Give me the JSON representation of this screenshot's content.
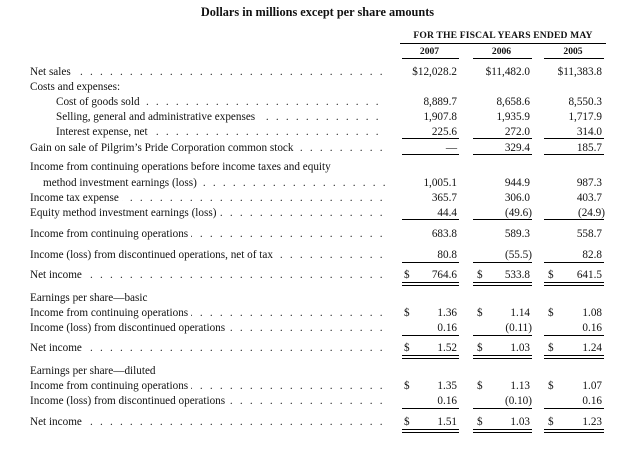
{
  "title": "Dollars in millions except per share amounts",
  "fiscal_header": "FOR THE FISCAL YEARS ENDED MAY",
  "years": [
    "2007",
    "2006",
    "2005"
  ],
  "dots": ". . . . . . . . . . . . . . . . . . . . . . . . . . . . . . . . . . . . . . . . . . . . . . . . . . . . . . . . . . . . . . . . . . . . . . . . . . . . . . . . . . . . . . . . . . . . . . .",
  "rows": [
    {
      "label": "Net sales",
      "c1": "$12,028.2",
      "c2": "$11,482.0",
      "c3": "$11,383.8"
    },
    {
      "label": "Costs and expenses:"
    },
    {
      "label": "Cost of goods sold",
      "c1": "8,889.7",
      "c2": "8,658.6",
      "c3": "8,550.3"
    },
    {
      "label": "Selling, general and administrative expenses",
      "c1": "1,907.8",
      "c2": "1,935.9",
      "c3": "1,717.9"
    },
    {
      "label": "Interest expense, net",
      "c1": "225.6",
      "c2": "272.0",
      "c3": "314.0"
    },
    {
      "label": "Gain on sale of Pilgrim’s Pride Corporation common stock",
      "c1": "—",
      "c2": "329.4",
      "c3": "185.7"
    },
    {
      "label": "Income from continuing operations before income taxes and equity"
    },
    {
      "label": "method investment earnings (loss)",
      "c1": "1,005.1",
      "c2": "944.9",
      "c3": "987.3"
    },
    {
      "label": "Income tax expense",
      "c1": "365.7",
      "c2": "306.0",
      "c3": "403.7"
    },
    {
      "label": "Equity method investment earnings (loss)",
      "c1": "44.4",
      "c2": "(49.6)",
      "c3": "(24.9)"
    },
    {
      "label": "Income from continuing operations",
      "c1": "683.8",
      "c2": "589.3",
      "c3": "558.7"
    },
    {
      "label": "Income (loss) from discontinued operations, net of tax",
      "c1": "80.8",
      "c2": "(55.5)",
      "c3": "82.8"
    },
    {
      "label": "Net income",
      "c1": "764.6",
      "c2": "533.8",
      "c3": "641.5"
    },
    {
      "label": "Earnings per share—basic"
    },
    {
      "label": "Income from continuing operations",
      "c1": "1.36",
      "c2": "1.14",
      "c3": "1.08"
    },
    {
      "label": "Income (loss) from discontinued operations",
      "c1": "0.16",
      "c2": "(0.11)",
      "c3": "0.16"
    },
    {
      "label": "Net income",
      "c1": "1.52",
      "c2": "1.03",
      "c3": "1.24"
    },
    {
      "label": "Earnings per share—diluted"
    },
    {
      "label": "Income from continuing operations",
      "c1": "1.35",
      "c2": "1.13",
      "c3": "1.07"
    },
    {
      "label": "Income (loss) from discontinued operations",
      "c1": "0.16",
      "c2": "(0.10)",
      "c3": "0.16"
    },
    {
      "label": "Net income",
      "c1": "1.51",
      "c2": "1.03",
      "c3": "1.23"
    }
  ],
  "currency_symbol": "$"
}
